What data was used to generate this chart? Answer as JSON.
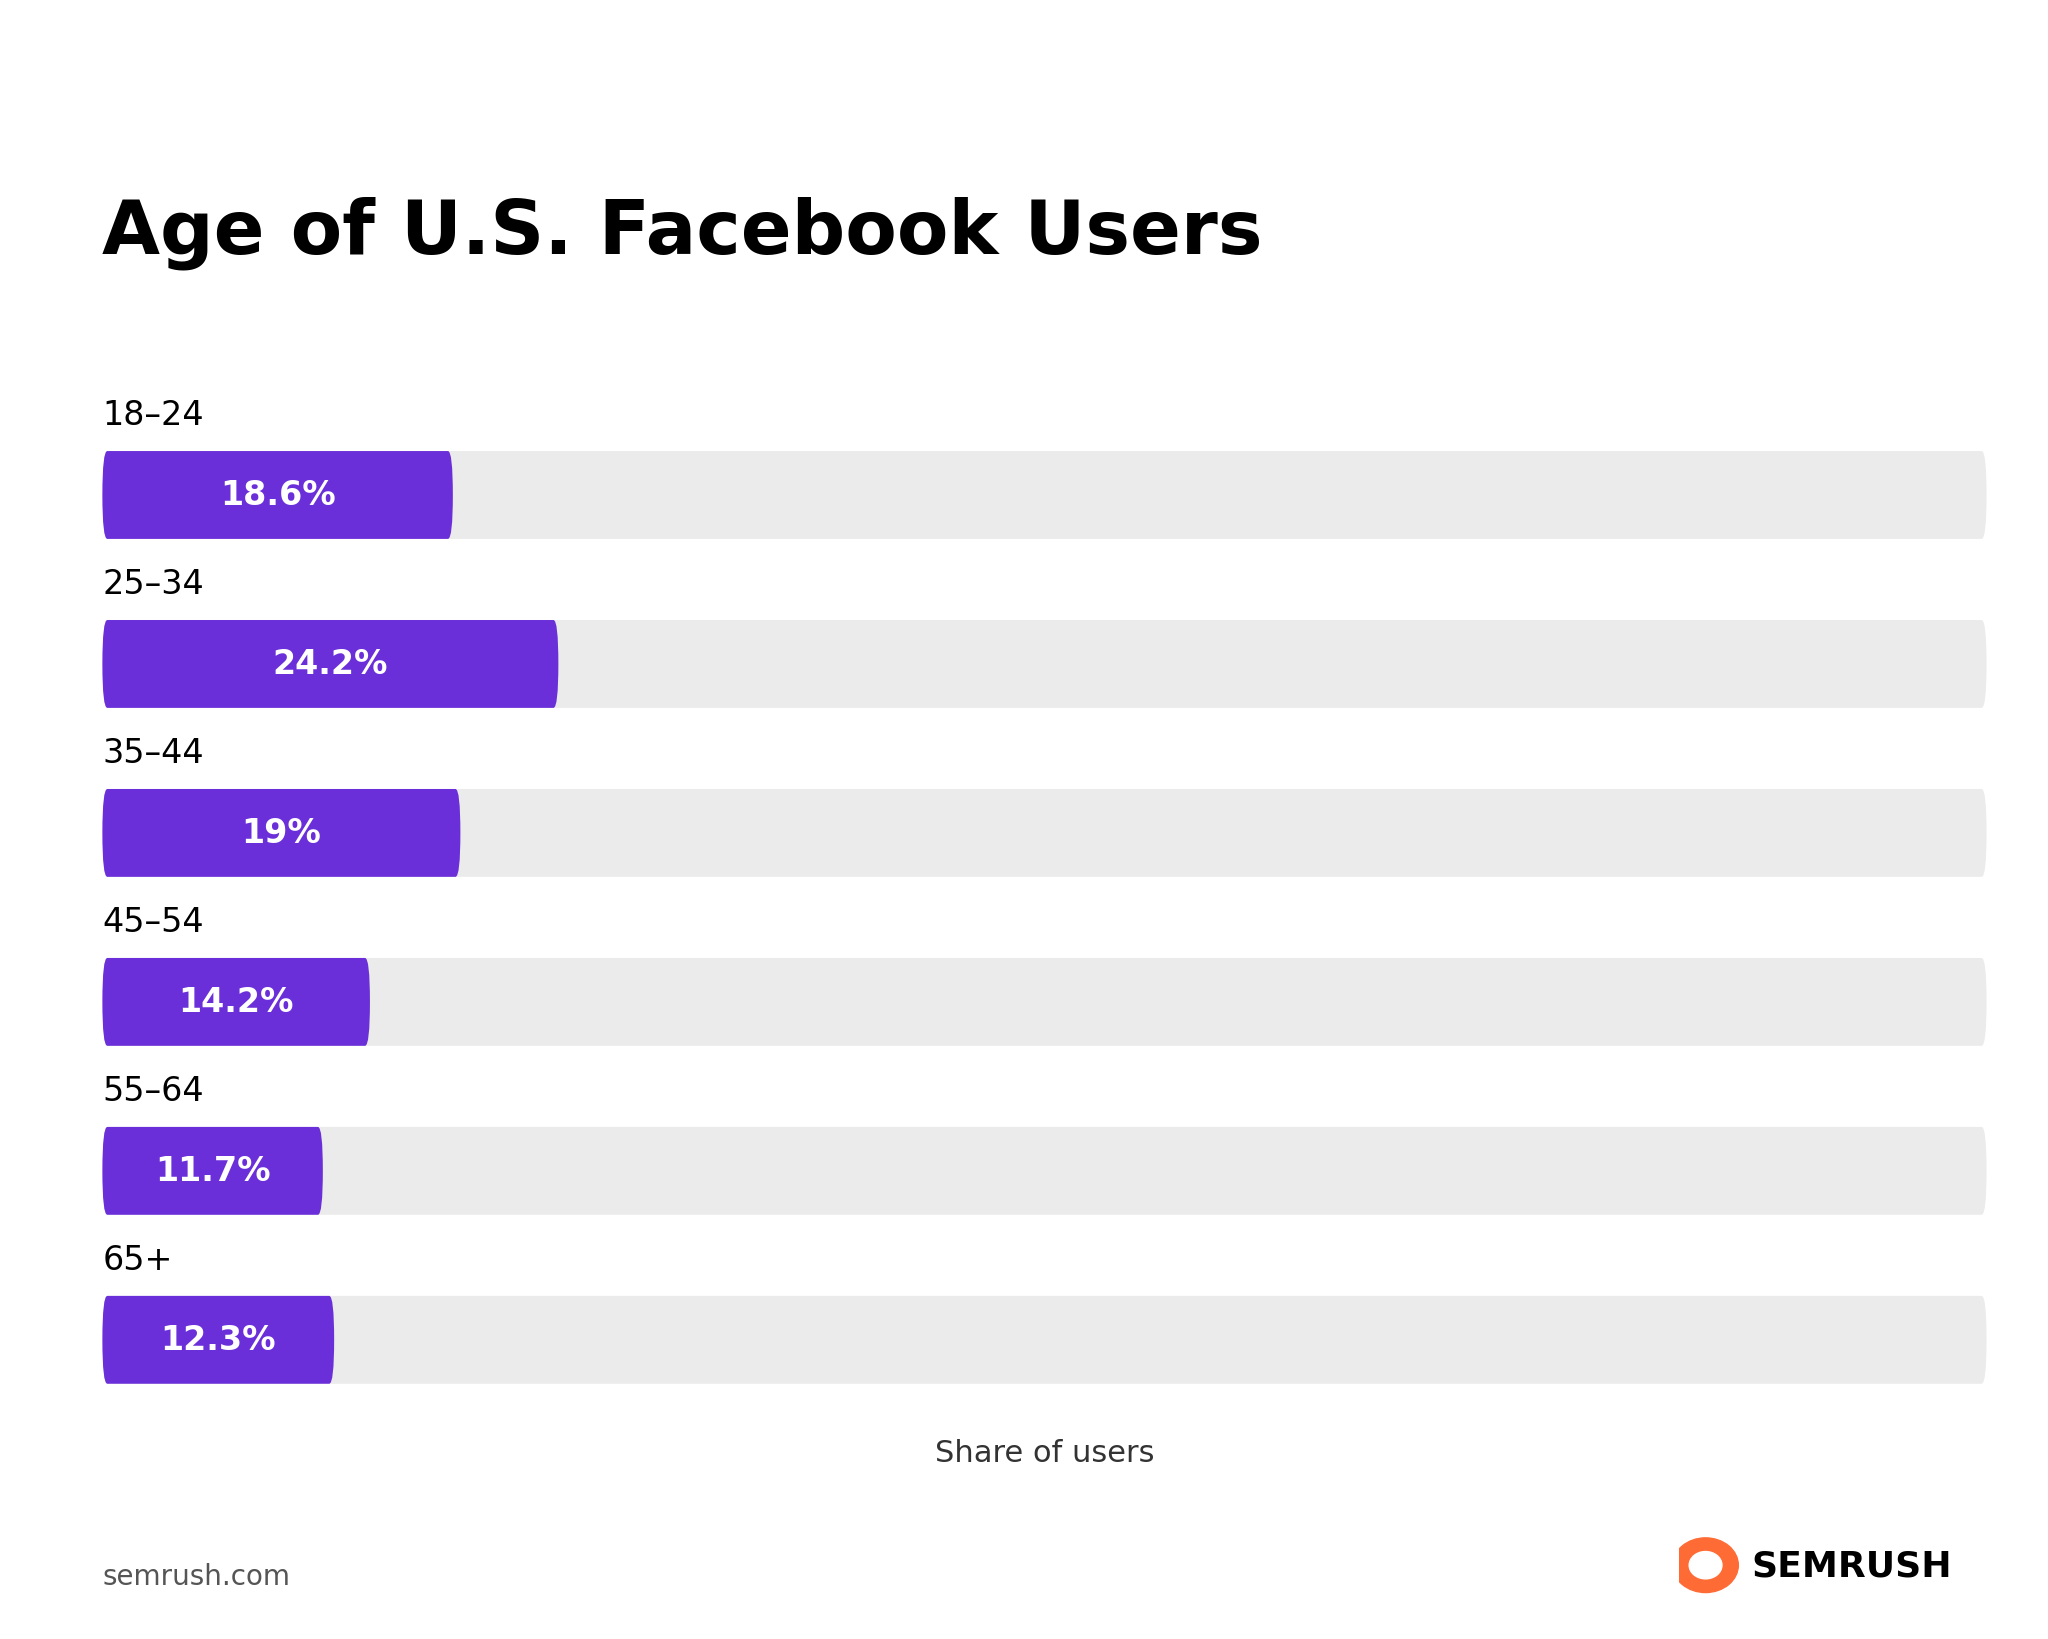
{
  "title": "Age of U.S. Facebook Users",
  "categories": [
    "18–24",
    "25–34",
    "35–44",
    "45–54",
    "55–64",
    "65+"
  ],
  "values": [
    18.6,
    24.2,
    19.0,
    14.2,
    11.7,
    12.3
  ],
  "labels": [
    "18.6%",
    "24.2%",
    "19%",
    "14.2%",
    "11.7%",
    "12.3%"
  ],
  "max_value": 100,
  "bar_color": "#6B2FD9",
  "bg_bar_color": "#EBEBEB",
  "bar_height": 0.52,
  "xlabel": "Share of users",
  "title_fontsize": 54,
  "category_fontsize": 24,
  "value_fontsize": 24,
  "footer_left": "semrush.com",
  "background_color": "#FFFFFF",
  "text_color": "#000000",
  "bar_text_color": "#FFFFFF",
  "semrush_orange": "#FF6B35"
}
